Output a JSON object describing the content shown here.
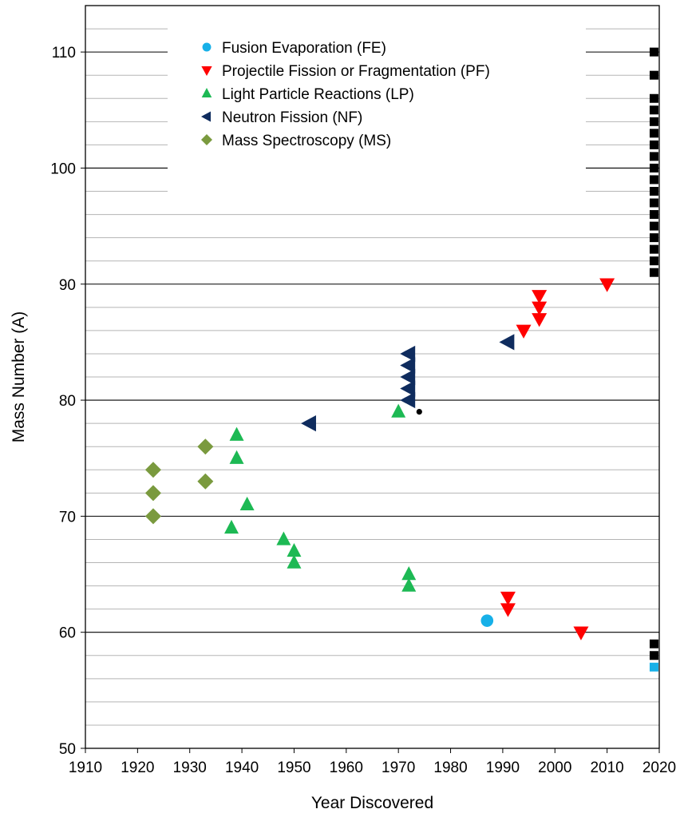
{
  "chart_data": {
    "type": "scatter",
    "xlabel": "Year Discovered",
    "ylabel": "Mass Number (A)",
    "xlim": [
      1910,
      2020
    ],
    "ylim": [
      50,
      114
    ],
    "xticks": [
      "1910",
      "1920",
      "1930",
      "1940",
      "1950",
      "1960",
      "1970",
      "1980",
      "1990",
      "2000",
      "2010",
      "2020"
    ],
    "yticks": [
      "50",
      "60",
      "70",
      "80",
      "90",
      "100",
      "110"
    ],
    "grid": "major and minor horizontal",
    "legend_position": "top-left",
    "series": [
      {
        "name": "Fusion Evaporation (FE)",
        "marker": "circle",
        "color": "#17b0e8",
        "points": [
          [
            1987,
            61
          ]
        ]
      },
      {
        "name": "Projectile Fission or Fragmentation (PF)",
        "marker": "triangle-down",
        "color": "#ff0000",
        "points": [
          [
            1991,
            63
          ],
          [
            1991,
            62
          ],
          [
            1994,
            86
          ],
          [
            1997,
            89
          ],
          [
            1997,
            88
          ],
          [
            1997,
            87
          ],
          [
            2005,
            60
          ],
          [
            2010,
            90
          ]
        ]
      },
      {
        "name": "Light Particle Reactions (LP)",
        "marker": "triangle-up",
        "color": "#1db954",
        "points": [
          [
            1938,
            69
          ],
          [
            1939,
            77
          ],
          [
            1939,
            75
          ],
          [
            1941,
            71
          ],
          [
            1948,
            68
          ],
          [
            1950,
            67
          ],
          [
            1950,
            66
          ],
          [
            1970,
            79
          ],
          [
            1972,
            65
          ],
          [
            1972,
            64
          ]
        ]
      },
      {
        "name": "Neutron Fission (NF)",
        "marker": "triangle-left",
        "color": "#0f2c5e",
        "points": [
          [
            1953,
            78
          ],
          [
            1972,
            84
          ],
          [
            1972,
            83
          ],
          [
            1972,
            82
          ],
          [
            1972,
            81
          ],
          [
            1972,
            80
          ],
          [
            1991,
            85
          ]
        ]
      },
      {
        "name": "Mass Spectroscopy (MS)",
        "marker": "diamond",
        "color": "#7a9a3e",
        "points": [
          [
            1923,
            74
          ],
          [
            1923,
            72
          ],
          [
            1923,
            70
          ],
          [
            1933,
            76
          ],
          [
            1933,
            73
          ]
        ]
      }
    ],
    "unlabeled_series": [
      {
        "marker": "square",
        "color": "#000000",
        "points": [
          [
            2019,
            110
          ],
          [
            2019,
            108
          ],
          [
            2019,
            106
          ],
          [
            2019,
            105
          ],
          [
            2019,
            104
          ],
          [
            2019,
            103
          ],
          [
            2019,
            102
          ],
          [
            2019,
            101
          ],
          [
            2019,
            100
          ],
          [
            2019,
            99
          ],
          [
            2019,
            98
          ],
          [
            2019,
            97
          ],
          [
            2019,
            96
          ],
          [
            2019,
            95
          ],
          [
            2019,
            94
          ],
          [
            2019,
            93
          ],
          [
            2019,
            92
          ],
          [
            2019,
            91
          ],
          [
            2019,
            59
          ],
          [
            2019,
            58
          ]
        ]
      },
      {
        "marker": "square",
        "color": "#17b0e8",
        "points": [
          [
            2019,
            57
          ]
        ]
      },
      {
        "marker": "small-circle",
        "color": "#000000",
        "points": [
          [
            1974,
            79
          ]
        ]
      }
    ]
  }
}
